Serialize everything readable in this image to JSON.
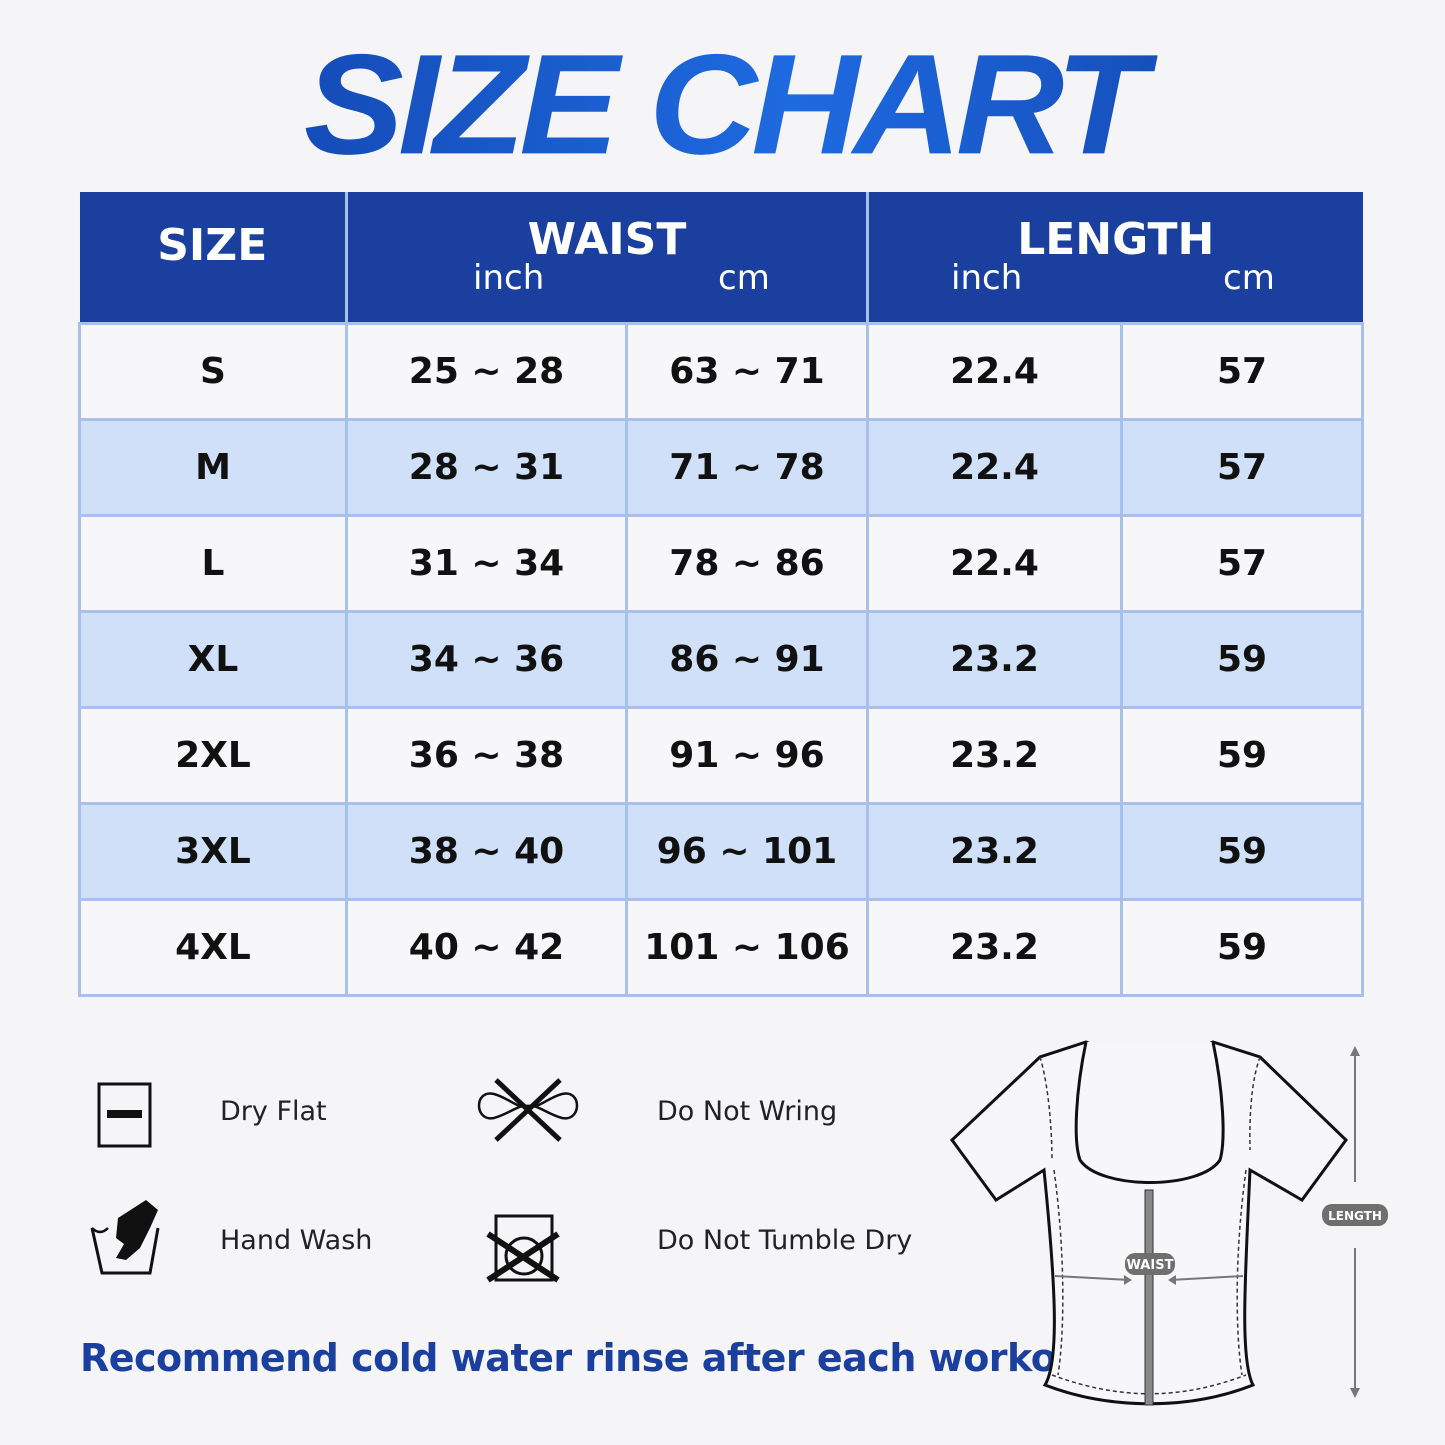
{
  "title": "SIZE CHART",
  "table": {
    "headers": {
      "size": "SIZE",
      "waist": "WAIST",
      "length": "LENGTH",
      "inch": "inch",
      "cm": "cm"
    },
    "rows": [
      {
        "size": "S",
        "waist_inch": "25 ~ 28",
        "waist_cm": "63 ~ 71",
        "length_inch": "22.4",
        "length_cm": "57"
      },
      {
        "size": "M",
        "waist_inch": "28 ~ 31",
        "waist_cm": "71 ~ 78",
        "length_inch": "22.4",
        "length_cm": "57"
      },
      {
        "size": "L",
        "waist_inch": "31 ~ 34",
        "waist_cm": "78 ~ 86",
        "length_inch": "22.4",
        "length_cm": "57"
      },
      {
        "size": "XL",
        "waist_inch": "34 ~ 36",
        "waist_cm": "86 ~ 91",
        "length_inch": "23.2",
        "length_cm": "59"
      },
      {
        "size": "2XL",
        "waist_inch": "36 ~ 38",
        "waist_cm": "91 ~ 96",
        "length_inch": "23.2",
        "length_cm": "59"
      },
      {
        "size": "3XL",
        "waist_inch": "38 ~ 40",
        "waist_cm": "96 ~ 101",
        "length_inch": "23.2",
        "length_cm": "59"
      },
      {
        "size": "4XL",
        "waist_inch": "40 ~ 42",
        "waist_cm": "101 ~ 106",
        "length_inch": "23.2",
        "length_cm": "59"
      }
    ]
  },
  "care": [
    {
      "icon": "dry-flat-icon",
      "label": "Dry Flat"
    },
    {
      "icon": "do-not-wring-icon",
      "label": "Do Not Wring"
    },
    {
      "icon": "hand-wash-icon",
      "label": "Hand Wash"
    },
    {
      "icon": "do-not-tumble-dry-icon",
      "label": "Do Not Tumble Dry"
    }
  ],
  "recommendation": "Recommend cold water rinse after each workout.",
  "diagram": {
    "waist_label": "WAIST",
    "length_label": "LENGTH"
  },
  "colors": {
    "header": "#1a3f9e",
    "stripe": "#cfe0f8",
    "border": "#a9c0ea",
    "accent": "#1448b8"
  }
}
